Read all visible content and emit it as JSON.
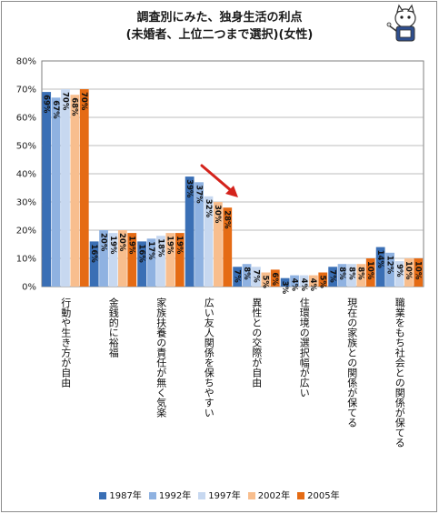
{
  "title_line1": "調査別にみた、独身生活の利点",
  "title_line2": "(未婚者、上位二つまで選択)(女性)",
  "chart_data": {
    "type": "bar",
    "title": "調査別にみた、独身生活の利点 (未婚者、上位二つまで選択)(女性)",
    "categories": [
      "行動や生き方が自由",
      "金銭的に裕福",
      "家族扶養の責任が無く気楽",
      "広い友人関係を保ちやすい",
      "異性との交際が自由",
      "住環境の選択幅が広い",
      "現在の家族との関係が保てる",
      "職業をもち社会との関係が保てる"
    ],
    "series": [
      {
        "name": "1987年",
        "color": "#3a6fb5",
        "values": [
          69,
          16,
          16,
          39,
          7,
          3,
          7,
          14
        ]
      },
      {
        "name": "1992年",
        "color": "#8fb2e1",
        "values": [
          67,
          20,
          17,
          37,
          8,
          4,
          8,
          12
        ]
      },
      {
        "name": "1997年",
        "color": "#c7d8f0",
        "values": [
          70,
          19,
          18,
          32,
          7,
          4,
          8,
          9
        ]
      },
      {
        "name": "2002年",
        "color": "#f8be8e",
        "values": [
          68,
          20,
          19,
          30,
          5,
          4,
          8,
          10
        ]
      },
      {
        "name": "2005年",
        "color": "#e56b14",
        "values": [
          70,
          19,
          19,
          28,
          6,
          5,
          10,
          10
        ]
      }
    ],
    "y_tick_labels": [
      "0%",
      "10%",
      "20%",
      "30%",
      "40%",
      "50%",
      "60%",
      "70%",
      "80%"
    ],
    "ylim": [
      0,
      80
    ],
    "grid": true,
    "legend_position": "bottom",
    "annotation": "arrow pointing down-right at 広い友人関係を保ちやすい"
  }
}
